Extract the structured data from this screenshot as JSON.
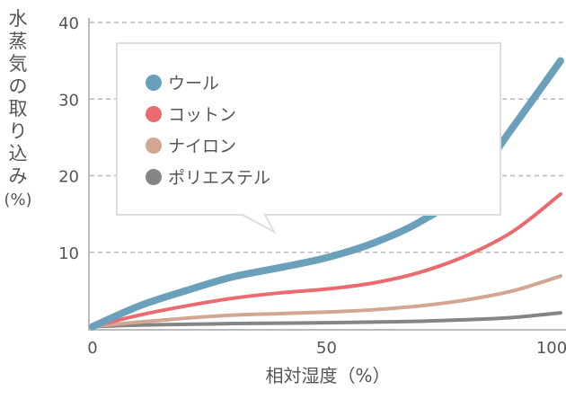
{
  "chart_data": {
    "type": "line",
    "xlabel": "相対湿度（%）",
    "ylabel": [
      "水",
      "蒸",
      "気",
      "の",
      "取",
      "り",
      "込",
      "み",
      "(%)"
    ],
    "xlim": [
      0,
      100
    ],
    "ylim": [
      0,
      40
    ],
    "xticks": [
      0,
      50,
      100
    ],
    "yticks": [
      10,
      20,
      30,
      40
    ],
    "grid": "horizontal dashed",
    "legend_position": "top-left",
    "x": [
      0,
      10,
      20,
      30,
      40,
      50,
      60,
      70,
      80,
      90,
      100
    ],
    "series": [
      {
        "name": "ウール",
        "color": "#6aa0b9",
        "values": [
          0.3,
          3.0,
          5.0,
          6.8,
          8.0,
          9.3,
          11.2,
          14.0,
          18.3,
          26.5,
          35.0
        ]
      },
      {
        "name": "コットン",
        "color": "#e96a6f",
        "values": [
          0.3,
          1.8,
          3.0,
          4.0,
          4.7,
          5.2,
          6.0,
          7.4,
          9.6,
          12.8,
          17.6
        ]
      },
      {
        "name": "ナイロン",
        "color": "#d2a692",
        "values": [
          0.3,
          0.9,
          1.4,
          1.8,
          2.0,
          2.2,
          2.5,
          3.0,
          3.8,
          5.0,
          6.9
        ]
      },
      {
        "name": "ポリエステル",
        "color": "#858585",
        "values": [
          0.3,
          0.5,
          0.6,
          0.7,
          0.75,
          0.8,
          0.9,
          1.0,
          1.2,
          1.5,
          2.1
        ]
      }
    ]
  }
}
